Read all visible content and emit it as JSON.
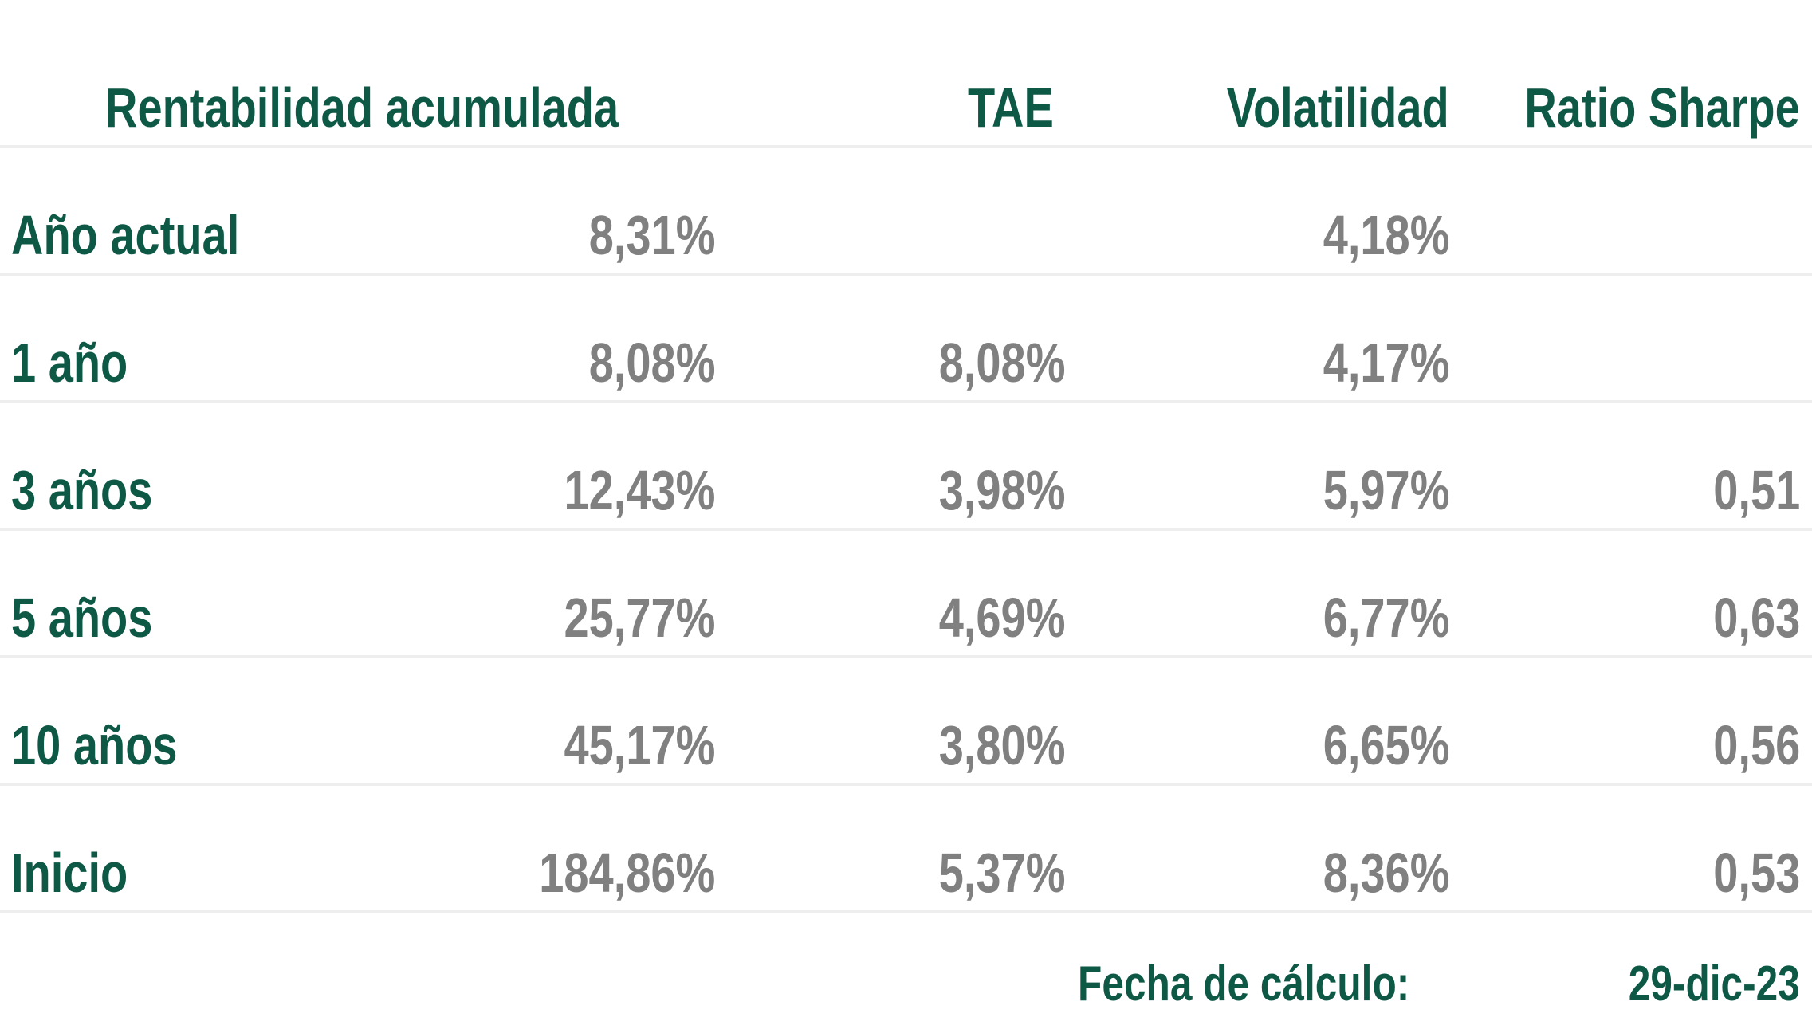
{
  "headers": {
    "cumulative": "Rentabilidad acumulada",
    "tae": "TAE",
    "volatility": "Volatilidad",
    "sharpe": "Ratio Sharpe"
  },
  "rows": [
    {
      "period": "Año actual",
      "cumulative": "8,31%",
      "tae": "",
      "volatility": "4,18%",
      "sharpe": ""
    },
    {
      "period": "1 año",
      "cumulative": "8,08%",
      "tae": "8,08%",
      "volatility": "4,17%",
      "sharpe": ""
    },
    {
      "period": "3 años",
      "cumulative": "12,43%",
      "tae": "3,98%",
      "volatility": "5,97%",
      "sharpe": "0,51"
    },
    {
      "period": "5 años",
      "cumulative": "25,77%",
      "tae": "4,69%",
      "volatility": "6,77%",
      "sharpe": "0,63"
    },
    {
      "period": "10 años",
      "cumulative": "45,17%",
      "tae": "3,80%",
      "volatility": "6,65%",
      "sharpe": "0,56"
    },
    {
      "period": "Inicio",
      "cumulative": "184,86%",
      "tae": "5,37%",
      "volatility": "8,36%",
      "sharpe": "0,53"
    }
  ],
  "footer": {
    "label": "Fecha de cálculo:",
    "date": "29-dic-23"
  },
  "colors": {
    "header_text": "#0e5846",
    "value_text": "#808080",
    "divider": "#eeeeee"
  }
}
